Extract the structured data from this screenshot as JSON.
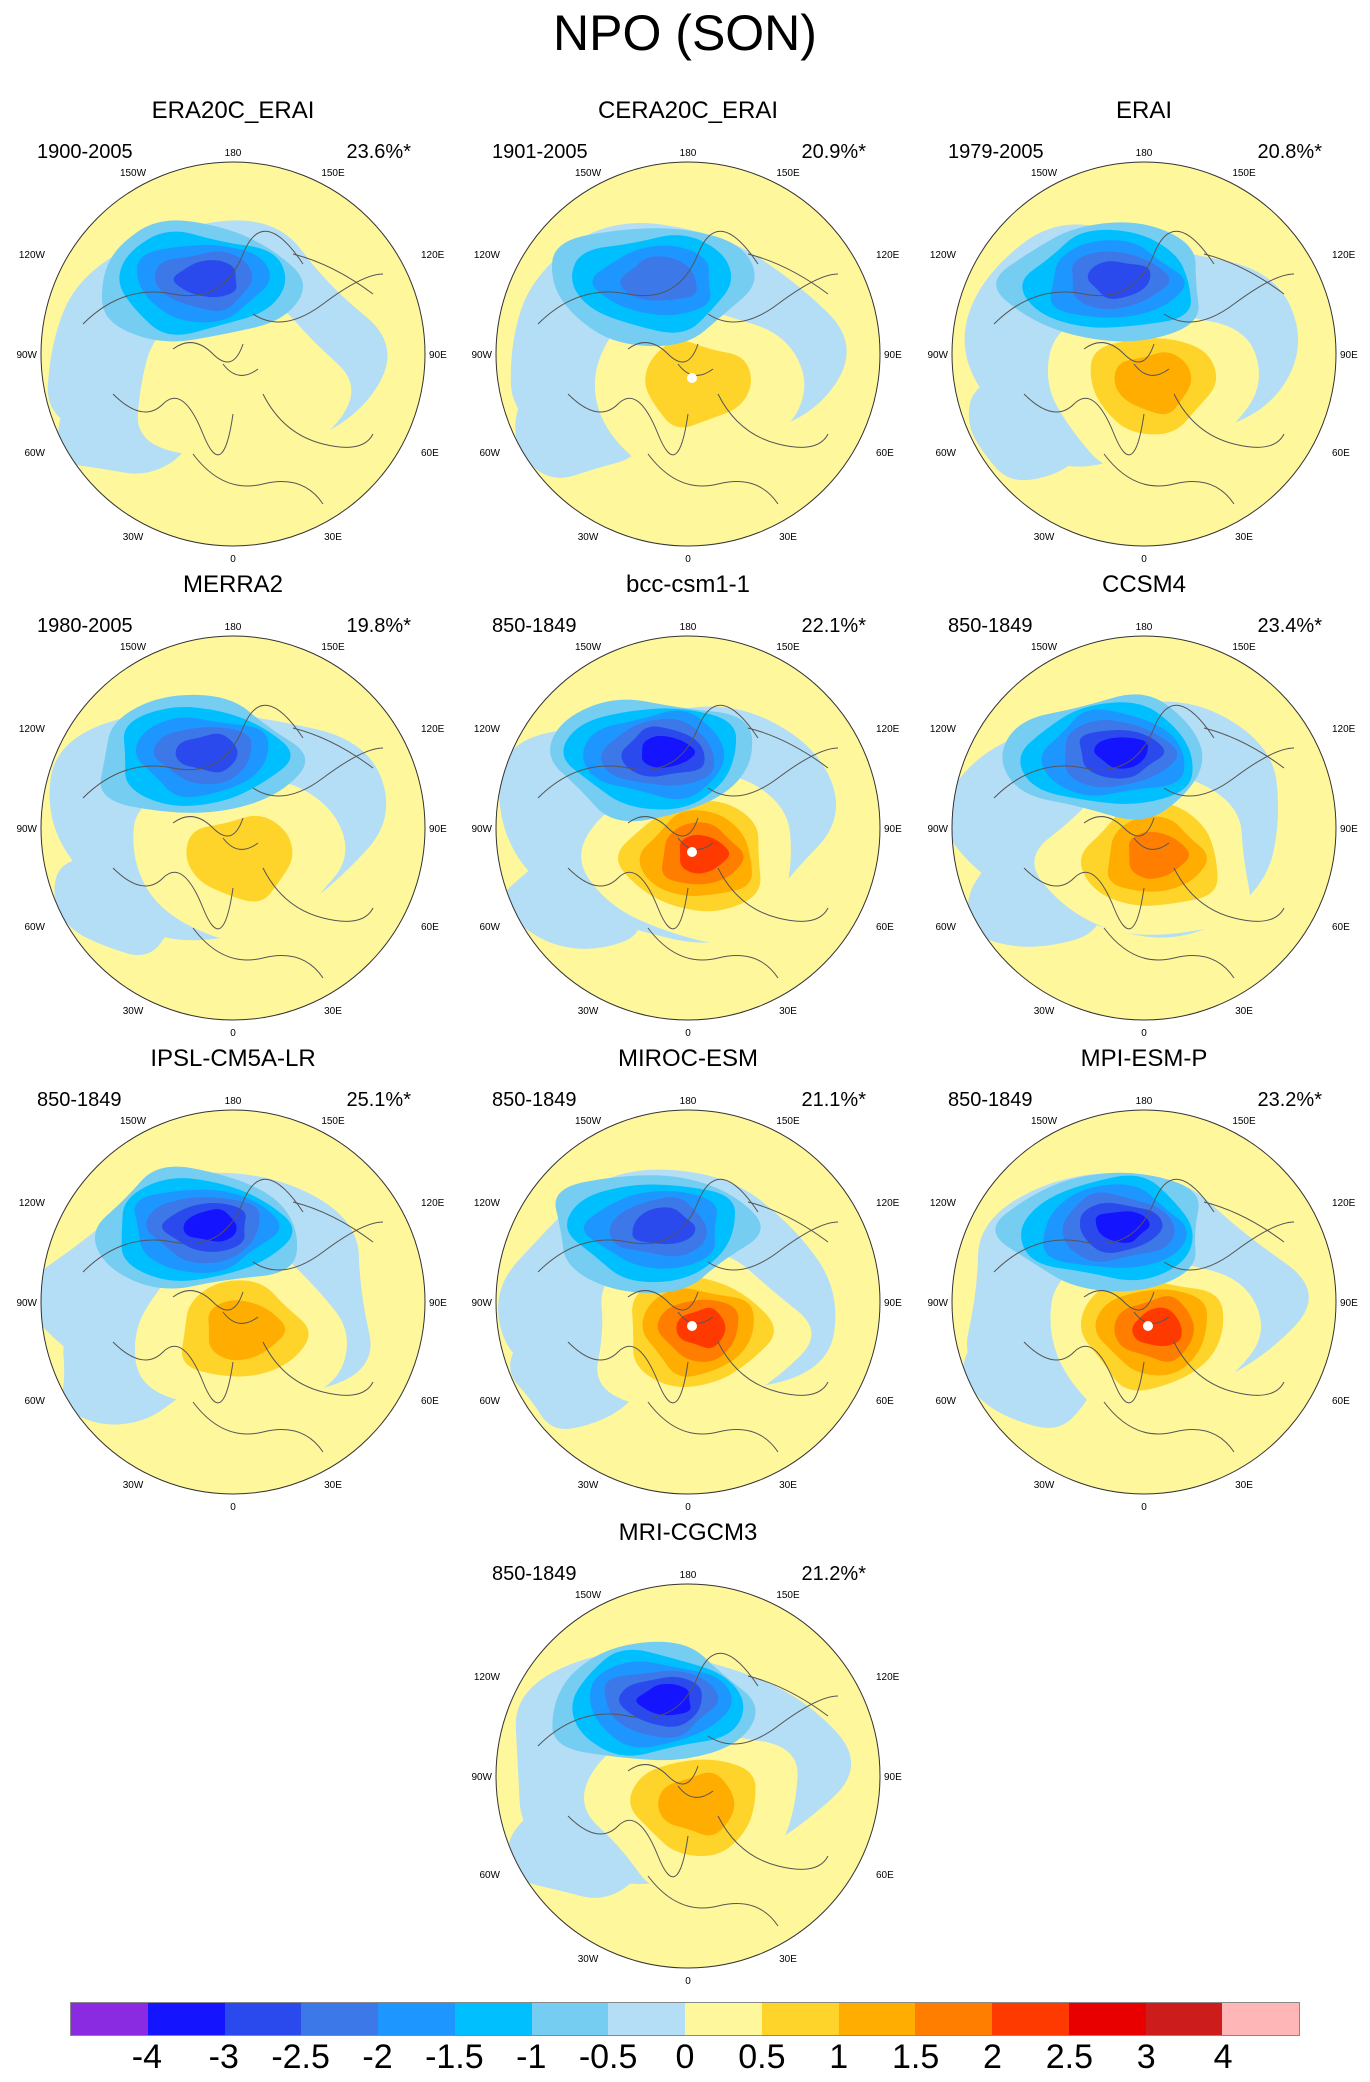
{
  "title": "NPO (SON)",
  "lon_labels": {
    "top": "180",
    "upper_left": "150W",
    "upper_right": "150E",
    "left_upper": "120W",
    "right_upper": "120E",
    "left_mid": "90W",
    "right_mid": "90E",
    "left_lower": "60W",
    "right_lower": "60E",
    "lower_left": "30W",
    "lower_right": "30E",
    "bottom": "0"
  },
  "panels": [
    {
      "name": "ERA20C_ERAI",
      "period": "1900-2005",
      "variance": "23.6%*",
      "low_strength": 2.9,
      "high_strength": 0.4,
      "dot": false
    },
    {
      "name": "CERA20C_ERAI",
      "period": "1901-2005",
      "variance": "20.9%*",
      "low_strength": 2.4,
      "high_strength": 0.8,
      "dot": true
    },
    {
      "name": "ERAI",
      "period": "1979-2005",
      "variance": "20.8%*",
      "low_strength": 2.6,
      "high_strength": 1.4,
      "dot": false
    },
    {
      "name": "MERRA2",
      "period": "1980-2005",
      "variance": "19.8%*",
      "low_strength": 2.7,
      "high_strength": 0.9,
      "dot": false
    },
    {
      "name": "bcc-csm1-1",
      "period": "850-1849",
      "variance": "22.1%*",
      "low_strength": 3.2,
      "high_strength": 2.0,
      "dot": true
    },
    {
      "name": "CCSM4",
      "period": "850-1849",
      "variance": "23.4%*",
      "low_strength": 3.3,
      "high_strength": 1.6,
      "dot": false
    },
    {
      "name": "IPSL-CM5A-LR",
      "period": "850-1849",
      "variance": "25.1%*",
      "low_strength": 3.3,
      "high_strength": 1.4,
      "dot": false
    },
    {
      "name": "MIROC-ESM",
      "period": "850-1849",
      "variance": "21.1%*",
      "low_strength": 2.8,
      "high_strength": 2.0,
      "dot": true
    },
    {
      "name": "MPI-ESM-P",
      "period": "850-1849",
      "variance": "23.2%*",
      "low_strength": 3.2,
      "high_strength": 2.4,
      "dot": true
    },
    {
      "name": "MRI-CGCM3",
      "period": "850-1849",
      "variance": "21.2%*",
      "low_strength": 3.3,
      "high_strength": 1.0,
      "dot": false
    }
  ],
  "colorbar": {
    "colors": [
      "#8a2be2",
      "#1414ff",
      "#2b4aee",
      "#3c78e8",
      "#1e96ff",
      "#00bfff",
      "#75cdf2",
      "#b4def5",
      "#fff79c",
      "#ffd42a",
      "#ffad00",
      "#ff7e00",
      "#ff3a00",
      "#e80000",
      "#cc1c1c",
      "#ffb6b6"
    ],
    "labels": [
      "-4",
      "-3",
      "-2.5",
      "-2",
      "-1.5",
      "-1",
      "-0.5",
      "0",
      "0.5",
      "1",
      "1.5",
      "2",
      "2.5",
      "3",
      "4"
    ]
  }
}
